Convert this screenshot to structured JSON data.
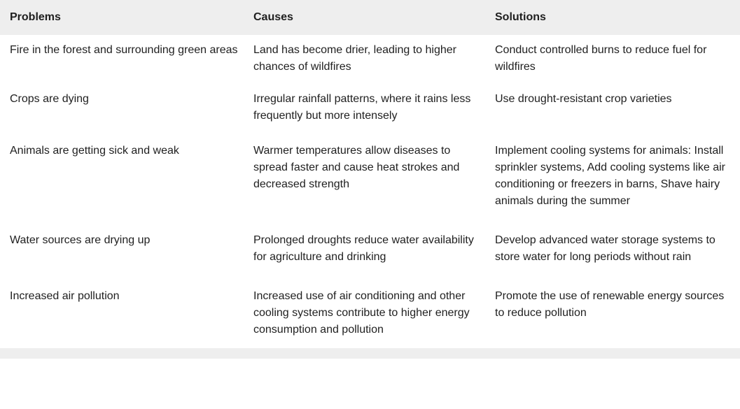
{
  "table": {
    "headers": [
      "Problems",
      "Causes",
      "Solutions"
    ],
    "rows": [
      {
        "problem": "Fire in the forest and surrounding green areas",
        "cause": "Land has become drier, leading to higher chances of wildfires",
        "solution": "Conduct controlled burns to reduce fuel for wildfires"
      },
      {
        "problem": "Crops are dying",
        "cause": "Irregular rainfall patterns, where it rains less frequently but more intensely",
        "solution": "Use drought-resistant crop varieties"
      },
      {
        "problem": "Animals are getting sick and weak",
        "cause": "Warmer temperatures allow diseases to spread faster and cause heat strokes and decreased strength",
        "solution": "Implement cooling systems for animals: Install sprinkler systems, Add cooling systems like air conditioning or freezers in barns, Shave hairy animals during the summer"
      },
      {
        "problem": "Water sources are drying up",
        "cause": "Prolonged droughts reduce water availability for agriculture and drinking",
        "solution": "Develop advanced water storage systems to store water for long periods without rain"
      },
      {
        "problem": "Increased air pollution",
        "cause": "Increased use of air conditioning and other cooling systems contribute to higher energy consumption and pollution",
        "solution": "Promote the use of renewable energy sources to reduce pollution"
      }
    ]
  }
}
